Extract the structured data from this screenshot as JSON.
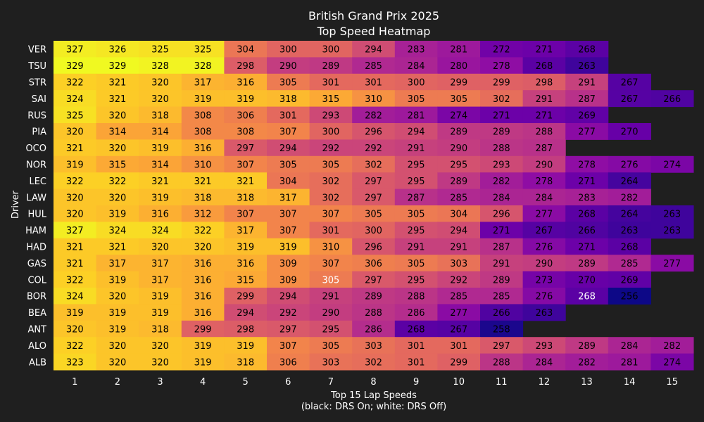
{
  "chart_data": {
    "type": "heatmap",
    "title": "British Grand Prix 2025",
    "subtitle": "Top Speed Heatmap",
    "xlabel": "Top 15 Lap Speeds",
    "xlabel_note": "(black: DRS On; white: DRS Off)",
    "ylabel": "Driver",
    "colormap": "plasma",
    "color_range": [
      256,
      329
    ],
    "x": [
      "1",
      "2",
      "3",
      "4",
      "5",
      "6",
      "7",
      "8",
      "9",
      "10",
      "11",
      "12",
      "13",
      "14",
      "15"
    ],
    "drivers": [
      "VER",
      "TSU",
      "STR",
      "SAI",
      "RUS",
      "PIA",
      "OCO",
      "NOR",
      "LEC",
      "LAW",
      "HUL",
      "HAM",
      "HAD",
      "GAS",
      "COL",
      "BOR",
      "BEA",
      "ANT",
      "ALO",
      "ALB"
    ],
    "values": [
      [
        327,
        326,
        325,
        325,
        304,
        300,
        300,
        294,
        283,
        281,
        272,
        271,
        268,
        null,
        null
      ],
      [
        329,
        329,
        328,
        328,
        298,
        290,
        289,
        285,
        284,
        280,
        278,
        268,
        263,
        null,
        null
      ],
      [
        322,
        321,
        320,
        317,
        316,
        305,
        301,
        301,
        300,
        299,
        299,
        298,
        291,
        267,
        null
      ],
      [
        324,
        321,
        320,
        319,
        319,
        318,
        315,
        310,
        305,
        305,
        302,
        291,
        287,
        267,
        266
      ],
      [
        325,
        320,
        318,
        308,
        306,
        301,
        293,
        282,
        281,
        274,
        271,
        271,
        269,
        null,
        null
      ],
      [
        320,
        314,
        314,
        308,
        308,
        307,
        300,
        296,
        294,
        289,
        289,
        288,
        277,
        270,
        null
      ],
      [
        321,
        320,
        319,
        316,
        297,
        294,
        292,
        292,
        291,
        290,
        288,
        287,
        null,
        null,
        null
      ],
      [
        319,
        315,
        314,
        310,
        307,
        305,
        305,
        302,
        295,
        295,
        293,
        290,
        278,
        276,
        274
      ],
      [
        322,
        322,
        321,
        321,
        321,
        304,
        302,
        297,
        295,
        289,
        282,
        278,
        271,
        264,
        null
      ],
      [
        320,
        320,
        319,
        318,
        318,
        317,
        302,
        297,
        287,
        285,
        284,
        284,
        283,
        282,
        null
      ],
      [
        320,
        319,
        316,
        312,
        307,
        307,
        307,
        305,
        305,
        304,
        296,
        277,
        268,
        264,
        263
      ],
      [
        327,
        324,
        324,
        322,
        317,
        307,
        301,
        300,
        295,
        294,
        271,
        267,
        266,
        263,
        263
      ],
      [
        321,
        321,
        320,
        320,
        319,
        319,
        310,
        296,
        291,
        291,
        287,
        276,
        271,
        268,
        null
      ],
      [
        321,
        317,
        317,
        316,
        316,
        309,
        307,
        306,
        305,
        303,
        291,
        290,
        289,
        285,
        277
      ],
      [
        322,
        319,
        317,
        316,
        315,
        309,
        305,
        297,
        295,
        292,
        289,
        273,
        270,
        269,
        null
      ],
      [
        324,
        320,
        319,
        316,
        299,
        294,
        291,
        289,
        288,
        285,
        285,
        276,
        268,
        256,
        null
      ],
      [
        319,
        319,
        319,
        316,
        294,
        292,
        290,
        288,
        286,
        277,
        266,
        263,
        null,
        null,
        null
      ],
      [
        320,
        319,
        318,
        299,
        298,
        297,
        295,
        286,
        268,
        267,
        258,
        null,
        null,
        null,
        null
      ],
      [
        322,
        320,
        320,
        319,
        319,
        307,
        305,
        303,
        301,
        301,
        297,
        293,
        289,
        284,
        282
      ],
      [
        323,
        320,
        320,
        319,
        318,
        306,
        303,
        302,
        301,
        299,
        288,
        284,
        282,
        281,
        274
      ]
    ],
    "drs_off_cells": [
      [
        14,
        6
      ],
      [
        15,
        12
      ]
    ]
  }
}
